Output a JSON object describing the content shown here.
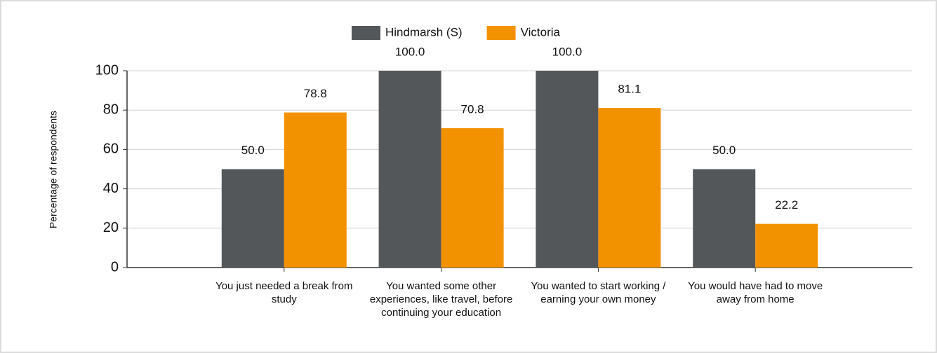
{
  "chart_data": {
    "type": "bar",
    "y_label": "Percentage of respondents",
    "categories": [
      "You just needed a break from study",
      "You wanted some other experiences, like travel, before continuing your education",
      "You wanted to start working / earning your own money",
      "You would have had to move away from home"
    ],
    "series": [
      {
        "name": "Hindmarsh (S)",
        "color": "#54575a",
        "values": [
          50,
          100,
          100,
          50
        ],
        "value_labels": [
          "50.0",
          "100.0",
          "100.0",
          "50.0"
        ]
      },
      {
        "name": "Victoria",
        "color": "#f39200",
        "values": [
          78.8,
          70.8,
          81.1,
          22.2
        ],
        "value_labels": [
          "78.8",
          "70.8",
          "81.1",
          "22.2"
        ]
      }
    ],
    "ylim": [
      0,
      100
    ],
    "yticks": [
      0,
      20,
      40,
      60,
      80,
      100
    ],
    "grid": true,
    "legend": "top"
  }
}
